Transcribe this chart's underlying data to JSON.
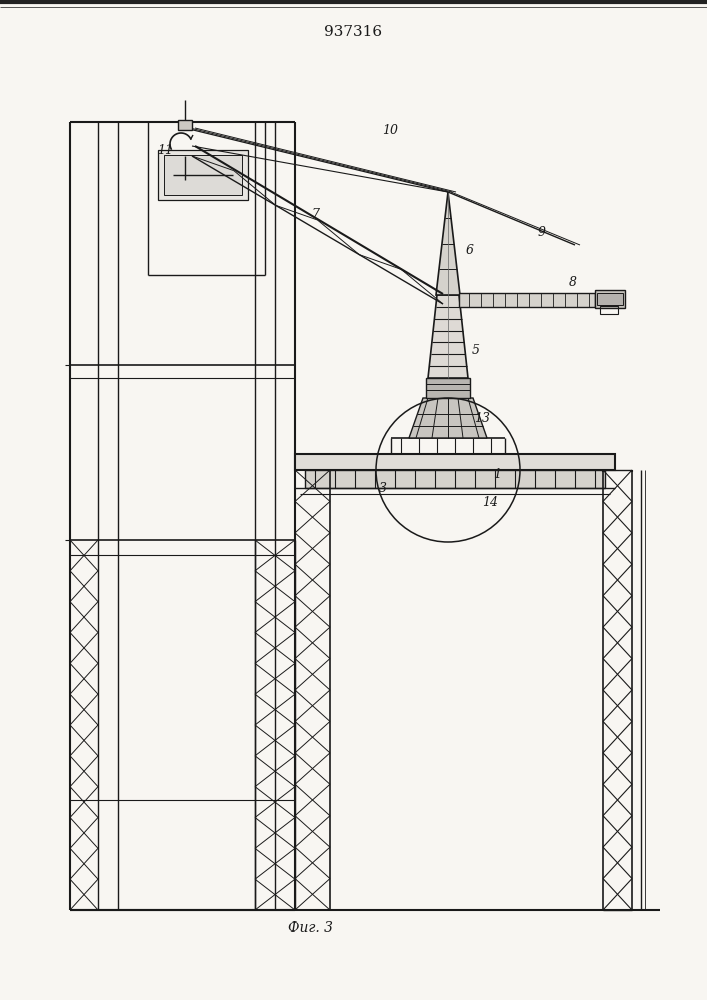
{
  "title": "937316",
  "caption": "Фиг. 3",
  "bg_color": "#f8f6f2",
  "lc": "#1a1a1a",
  "fig_width": 7.07,
  "fig_height": 10.0,
  "dpi": 100
}
